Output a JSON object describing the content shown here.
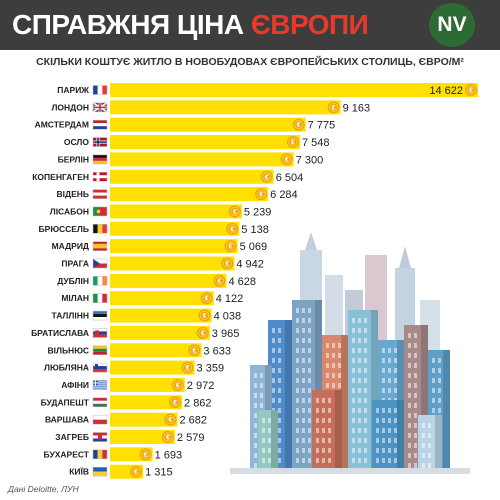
{
  "header": {
    "title_main": "СПРАВЖНЯ ЦІНА ",
    "title_accent": "ЄВРОПИ",
    "logo": "NV"
  },
  "colors": {
    "header_bg": "#3d3d3d",
    "accent_red": "#e8392b",
    "bar_yellow": "#ffe000",
    "coin_gold": "#f0a500",
    "logo_green": "#2d6b35"
  },
  "coin_glyph": "€",
  "chart_data": {
    "type": "bar",
    "orientation": "horizontal",
    "title": "СКІЛЬКИ КОШТУЄ ЖИТЛО В НОВОБУДОВАХ ЄВРОПЕЙСЬКИХ СТОЛИЦЬ, ЄВРО/М²",
    "categories": [
      "ПАРИЖ",
      "ЛОНДОН",
      "АМСТЕРДАМ",
      "ОСЛО",
      "БЕРЛІН",
      "КОПЕНГАГЕН",
      "ВІДЕНЬ",
      "ЛІСАБОН",
      "БРЮССЕЛЬ",
      "МАДРИД",
      "ПРАГА",
      "ДУБЛІН",
      "МІЛАН",
      "ТАЛЛІНН",
      "БРАТИСЛАВА",
      "ВІЛЬНЮС",
      "ЛЮБЛЯНА",
      "АФІНИ",
      "БУДАПЕШТ",
      "ВАРШАВА",
      "ЗАГРЕБ",
      "БУХАРЕСТ",
      "КИЇВ"
    ],
    "values": [
      14622,
      9163,
      7775,
      7548,
      7300,
      6504,
      6284,
      5239,
      5138,
      5069,
      4942,
      4628,
      4122,
      4038,
      3965,
      3633,
      3359,
      2972,
      2862,
      2682,
      2579,
      1693,
      1315
    ],
    "value_labels": [
      "14 622",
      "9 163",
      "7 775",
      "7 548",
      "7 300",
      "6 504",
      "6 284",
      "5 239",
      "5 138",
      "5 069",
      "4 942",
      "4 628",
      "4 122",
      "4 038",
      "3 965",
      "3 633",
      "3 359",
      "2 972",
      "2 862",
      "2 682",
      "2 579",
      "1 693",
      "1 315"
    ],
    "flags": [
      "france",
      "uk",
      "netherlands",
      "norway",
      "germany",
      "denmark",
      "austria",
      "portugal",
      "belgium",
      "spain",
      "czechia",
      "ireland",
      "italy",
      "estonia",
      "slovakia",
      "lithuania",
      "slovenia",
      "greece",
      "hungary",
      "poland",
      "croatia",
      "romania",
      "ukraine"
    ],
    "source": "Дані Deloitte, ЛУН"
  }
}
